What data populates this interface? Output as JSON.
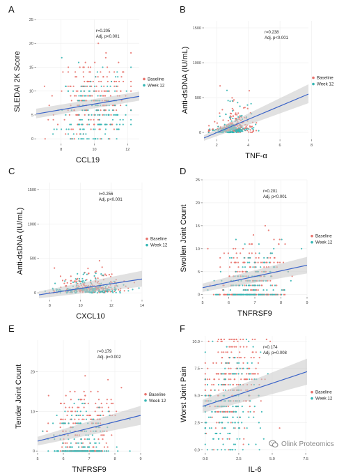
{
  "colors": {
    "baseline": "#e8726c",
    "week12": "#35b6b4",
    "fit": "#3a63c8",
    "band": "#c8c8c8"
  },
  "watermark": {
    "text": "Olink Proteomics"
  },
  "chart_data": [
    {
      "type": "scatter",
      "panel_label": "A",
      "xlabel": "CCL19",
      "ylabel": "SLEDAI 2K Score",
      "stats": [
        "r=0.205",
        "Adj. p<0.001"
      ],
      "legend": [
        "Baseline",
        "Week 12"
      ],
      "xlim": [
        6.5,
        12.7
      ],
      "ylim": [
        -1,
        25
      ],
      "xticks": [
        8,
        10,
        12
      ],
      "xtick_labels": [
        "8",
        "10",
        "12"
      ],
      "yticks": [
        0,
        5,
        10,
        15,
        20,
        25
      ],
      "ytick_labels": [
        "0",
        "5",
        "10",
        "15",
        "20",
        "25"
      ],
      "fit": {
        "x": [
          6.5,
          12.7
        ],
        "y": [
          5.2,
          8.9
        ],
        "band_low": [
          4.3,
          8.0
        ],
        "band_high": [
          6.3,
          9.9
        ]
      },
      "sim": {
        "y_discrete": true,
        "y_step": 1,
        "noise": 4.2,
        "xmin": 7.0,
        "xmax": 12.2,
        "xmean": 10.0,
        "xsd": 1.1,
        "n_base": 220,
        "n_week": 170,
        "seed": 11
      }
    },
    {
      "type": "scatter",
      "panel_label": "B",
      "xlabel": "TNF-α",
      "ylabel": "Anti-dsDNA (IU/mL)",
      "stats": [
        "r=0.238",
        "Adj. p<0.001"
      ],
      "legend": [
        "Baseline",
        "Week 12"
      ],
      "xlim": [
        1.2,
        7.8
      ],
      "ylim": [
        -100,
        1600
      ],
      "xticks": [
        2,
        4,
        6,
        8
      ],
      "xtick_labels": [
        "2",
        "4",
        "6",
        "8"
      ],
      "yticks": [
        0,
        500,
        1000,
        1500
      ],
      "ytick_labels": [
        "0",
        "500",
        "1000",
        "1500"
      ],
      "fit": {
        "x": [
          1.2,
          7.8
        ],
        "y": [
          -80,
          550
        ],
        "band_low": [
          -120,
          420
        ],
        "band_high": [
          -40,
          690
        ]
      },
      "sim": {
        "y_discrete": false,
        "noise": 140,
        "xmin": 1.5,
        "xmax": 7.5,
        "xmean": 3.0,
        "xsd": 0.6,
        "n_base": 220,
        "n_week": 170,
        "seed": 23,
        "skew": true
      }
    },
    {
      "type": "scatter",
      "panel_label": "C",
      "xlabel": "CXCL10",
      "ylabel": "Anti-dsDNA (IU/mL)",
      "stats": [
        "r=0.256",
        "Adj. p<0.001"
      ],
      "legend": [
        "Baseline",
        "Week 12"
      ],
      "xlim": [
        7.3,
        14.0
      ],
      "ylim": [
        -100,
        1600
      ],
      "xticks": [
        8,
        10,
        12,
        14
      ],
      "xtick_labels": [
        "8",
        "10",
        "12",
        "14"
      ],
      "yticks": [
        0,
        500,
        1000,
        1500
      ],
      "ytick_labels": [
        "0",
        "500",
        "1000",
        "1500"
      ],
      "fit": {
        "x": [
          7.3,
          14.0
        ],
        "y": [
          -30,
          200
        ],
        "band_low": [
          -80,
          90
        ],
        "band_high": [
          20,
          320
        ]
      },
      "sim": {
        "y_discrete": false,
        "noise": 130,
        "xmin": 7.6,
        "xmax": 13.8,
        "xmean": 10.6,
        "xsd": 1.1,
        "n_base": 220,
        "n_week": 170,
        "seed": 37,
        "skew": true
      }
    },
    {
      "type": "scatter",
      "panel_label": "D",
      "xlabel": "TNFRSF9",
      "ylabel": "Swollen Joint Count",
      "stats": [
        "r=0.201",
        "Adj. p<0.001"
      ],
      "legend": [
        "Baseline",
        "Week 12"
      ],
      "xlim": [
        5.0,
        9.0
      ],
      "ylim": [
        -0.5,
        25
      ],
      "xticks": [
        5,
        6,
        7,
        8,
        9
      ],
      "xtick_labels": [
        "5",
        "6",
        "7",
        "8",
        "9"
      ],
      "yticks": [
        0,
        5,
        10,
        15,
        20,
        25
      ],
      "ytick_labels": [
        "0",
        "5",
        "10",
        "15",
        "20",
        "25"
      ],
      "fit": {
        "x": [
          5.0,
          9.0
        ],
        "y": [
          1.5,
          6.4
        ],
        "band_low": [
          0.6,
          4.6
        ],
        "band_high": [
          2.4,
          8.2
        ]
      },
      "sim": {
        "y_discrete": true,
        "y_step": 1,
        "noise": 3.5,
        "xmin": 5.2,
        "xmax": 8.8,
        "xmean": 6.8,
        "xsd": 0.65,
        "n_base": 220,
        "n_week": 170,
        "seed": 41,
        "zero_heavy": true
      }
    },
    {
      "type": "scatter",
      "panel_label": "E",
      "xlabel": "TNFRSF9",
      "ylabel": "Tender Joint Count",
      "stats": [
        "r=0.179",
        "Adj. p=0.002"
      ],
      "legend": [
        "Baseline",
        "Week 12"
      ],
      "xlim": [
        5.0,
        9.0
      ],
      "ylim": [
        -0.5,
        28
      ],
      "xticks": [
        5,
        6,
        7,
        8,
        9
      ],
      "xtick_labels": [
        "5",
        "6",
        "7",
        "8",
        "9"
      ],
      "yticks": [
        0,
        10,
        20
      ],
      "ytick_labels": [
        "0",
        "10",
        "20"
      ],
      "fit": {
        "x": [
          5.0,
          9.0
        ],
        "y": [
          2.5,
          9.0
        ],
        "band_low": [
          1.4,
          6.6
        ],
        "band_high": [
          3.6,
          11.4
        ]
      },
      "sim": {
        "y_discrete": true,
        "y_step": 1,
        "noise": 5.0,
        "xmin": 5.2,
        "xmax": 8.8,
        "xmean": 6.8,
        "xsd": 0.65,
        "n_base": 220,
        "n_week": 170,
        "seed": 53,
        "zero_heavy": true
      }
    },
    {
      "type": "scatter",
      "panel_label": "F",
      "xlabel": "IL-6",
      "ylabel": "Worst Joint Pain",
      "stats": [
        "r=0.174",
        "Adj. p=0.008"
      ],
      "legend": [
        "Baseline",
        "Week 12"
      ],
      "xlim": [
        -0.2,
        7.6
      ],
      "ylim": [
        -0.3,
        10.5
      ],
      "xticks": [
        0,
        2.5,
        5,
        7.5
      ],
      "xtick_labels": [
        "0.0",
        "2.5",
        "5.0",
        "7.5"
      ],
      "yticks": [
        0,
        2.5,
        5,
        7.5,
        10
      ],
      "ytick_labels": [
        "0.0",
        "2.5",
        "5.0",
        "7.5",
        "10.0"
      ],
      "fit": {
        "x": [
          -0.2,
          7.6
        ],
        "y": [
          4.0,
          7.2
        ],
        "band_low": [
          3.4,
          6.0
        ],
        "band_high": [
          4.6,
          8.4
        ]
      },
      "sim": {
        "y_discrete": true,
        "y_step": 0.5,
        "noise": 2.5,
        "xmin": 0.0,
        "xmax": 7.5,
        "xmean": 1.8,
        "xsd": 1.1,
        "n_base": 240,
        "n_week": 180,
        "seed": 67
      }
    }
  ]
}
